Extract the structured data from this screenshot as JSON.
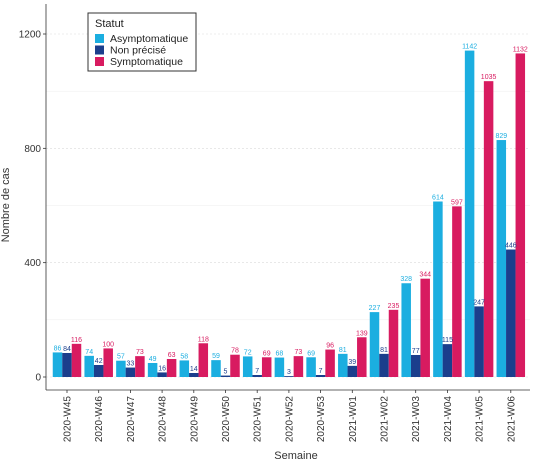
{
  "chart_data": {
    "type": "bar",
    "xlabel": "Semaine",
    "ylabel": "Nombre de cas",
    "ylim": [
      0,
      1300
    ],
    "yticks": [
      0,
      400,
      800,
      1200
    ],
    "grid": true,
    "legend": {
      "title": "Statut",
      "placement": "top-left"
    },
    "categories": [
      "2020-W45",
      "2020-W46",
      "2020-W47",
      "2020-W48",
      "2020-W49",
      "2020-W50",
      "2020-W51",
      "2020-W52",
      "2020-W53",
      "2021-W01",
      "2021-W02",
      "2021-W03",
      "2021-W04",
      "2021-W05",
      "2021-W06"
    ],
    "series": [
      {
        "name": "Asymptomatique",
        "color": "#1BAEE0",
        "values": [
          86,
          74,
          57,
          49,
          58,
          59,
          72,
          68,
          69,
          81,
          227,
          328,
          614,
          1142,
          829
        ]
      },
      {
        "name": "Non précisé",
        "color": "#1B3E8C",
        "values": [
          84,
          42,
          33,
          16,
          14,
          5,
          7,
          3,
          7,
          39,
          81,
          77,
          115,
          247,
          446
        ]
      },
      {
        "name": "Symptomatique",
        "color": "#D81B60",
        "values": [
          116,
          100,
          73,
          63,
          118,
          78,
          69,
          73,
          96,
          139,
          235,
          344,
          597,
          1035,
          1132
        ]
      }
    ]
  }
}
